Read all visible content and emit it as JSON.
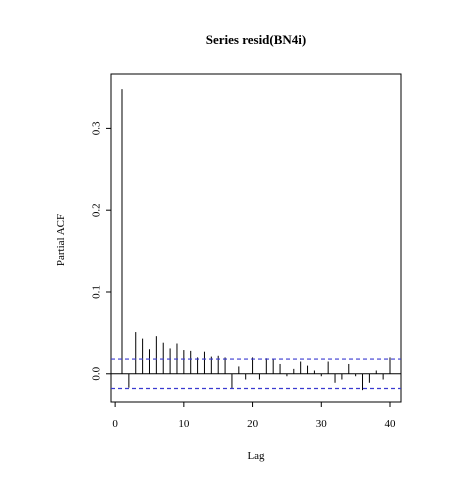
{
  "chart_data": {
    "type": "bar",
    "title": "Series  resid(BN4i)",
    "xlabel": "Lag",
    "ylabel": "Partial ACF",
    "xlim": [
      -0.6,
      41.6
    ],
    "ylim": [
      -0.0345,
      0.3665
    ],
    "x_ticks": [
      0,
      10,
      20,
      30,
      40
    ],
    "x_tick_labels": [
      "0",
      "10",
      "20",
      "30",
      "40"
    ],
    "y_ticks": [
      0.0,
      0.1,
      0.2,
      0.3
    ],
    "y_tick_labels": [
      "0.0",
      "0.1",
      "0.2",
      "0.3"
    ],
    "grid": false,
    "confidence_bound": 0.018,
    "series": [
      {
        "lags": [
          1,
          2,
          3,
          4,
          5,
          6,
          7,
          8,
          9,
          10,
          11,
          12,
          13,
          14,
          15,
          16,
          17,
          18,
          19,
          20,
          21,
          22,
          23,
          24,
          25,
          26,
          27,
          28,
          29,
          30,
          31,
          32,
          33,
          34,
          35,
          36,
          37,
          38,
          39,
          40
        ],
        "values": [
          0.348,
          -0.017,
          0.051,
          0.043,
          0.03,
          0.046,
          0.038,
          0.031,
          0.037,
          0.029,
          0.028,
          0.02,
          0.027,
          0.021,
          0.022,
          0.02,
          -0.018,
          0.009,
          -0.007,
          0.02,
          -0.007,
          0.019,
          0.018,
          0.012,
          -0.003,
          0.006,
          0.015,
          0.01,
          0.004,
          -0.003,
          0.015,
          -0.011,
          -0.007,
          0.012,
          -0.003,
          -0.02,
          -0.011,
          0.004,
          -0.007,
          0.02
        ]
      }
    ],
    "colors": {
      "spike": "#000000",
      "confidence_band": "#3a3ad0",
      "axis": "#000000",
      "background": "#ffffff"
    }
  }
}
